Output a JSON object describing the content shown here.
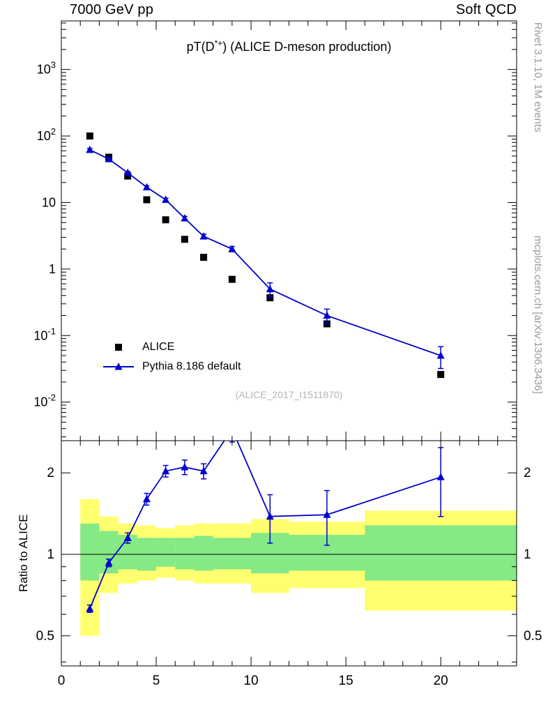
{
  "header": {
    "left": "7000 GeV pp",
    "right": "Soft QCD"
  },
  "side_labels": {
    "top_right": "Rivet 3.1.10,  1M events",
    "bottom_right": "mcplots.cern.ch [arXiv:1306.3436]"
  },
  "title": {
    "pre": "pT(D",
    "sup": "*+",
    "post": ") (ALICE D-meson production)"
  },
  "watermark": "(ALICE_2017_I1511870)",
  "ratio_ylabel": "Ratio to ALICE",
  "legend": [
    {
      "label": "ALICE",
      "marker": "square",
      "color": "#000000"
    },
    {
      "label": "Pythia 8.186 default",
      "marker": "triangle-line",
      "color": "#0000cc"
    }
  ],
  "colors": {
    "alice": "#000000",
    "pythia": "#0000cc",
    "band_outer": "#ffff70",
    "band_inner": "#85e985",
    "frame": "#000000",
    "gray_text": "#999999",
    "watermark": "#b5b5b5"
  },
  "chart_data": {
    "type": "line",
    "title": "pT(D*+) (ALICE D-meson production)",
    "xlabel": "",
    "x_range": [
      0,
      24
    ],
    "x_major_ticks": [
      0,
      5,
      10,
      15,
      20
    ],
    "main_panel": {
      "y_scale": "log",
      "y_log_range": [
        -2.58,
        3.73
      ],
      "y_labeled_decades": [
        3,
        2,
        1,
        0,
        -1,
        -2
      ],
      "x": [
        1.5,
        2.5,
        3.5,
        4.5,
        5.5,
        6.5,
        7.5,
        9,
        11,
        14,
        20
      ],
      "series": [
        {
          "name": "ALICE",
          "marker": "square",
          "color": "#000000",
          "line": false,
          "y": [
            100,
            48,
            25,
            11,
            5.5,
            2.8,
            1.5,
            0.7,
            0.37,
            0.15,
            0.026
          ]
        },
        {
          "name": "Pythia 8.186 default",
          "marker": "triangle",
          "color": "#0000cc",
          "line": true,
          "y": [
            62,
            45,
            28,
            17,
            11,
            5.8,
            3.1,
            2.0,
            0.5,
            0.2,
            0.05
          ],
          "yerr": [
            3,
            2,
            1.2,
            0.8,
            0.6,
            0.4,
            0.25,
            0.18,
            0.12,
            0.05,
            0.018
          ]
        }
      ]
    },
    "ratio_panel": {
      "y_scale": "log",
      "y_log_range": [
        -0.4123,
        0.42
      ],
      "y_ticks": [
        0.5,
        1,
        2
      ],
      "y_minor_ticks": [
        0.4,
        0.6,
        0.7,
        0.8,
        0.9
      ],
      "ref_line": 1,
      "bin_edges": [
        1,
        2,
        3,
        4,
        5,
        6,
        7,
        8,
        10,
        12,
        16,
        24
      ],
      "yellow_lo": [
        0.5,
        0.72,
        0.78,
        0.8,
        0.82,
        0.8,
        0.78,
        0.78,
        0.72,
        0.75,
        0.62
      ],
      "yellow_hi": [
        1.6,
        1.38,
        1.3,
        1.28,
        1.25,
        1.28,
        1.3,
        1.3,
        1.35,
        1.32,
        1.45
      ],
      "green_lo": [
        0.8,
        0.85,
        0.88,
        0.87,
        0.9,
        0.88,
        0.87,
        0.88,
        0.85,
        0.87,
        0.8
      ],
      "green_hi": [
        1.3,
        1.22,
        1.18,
        1.15,
        1.15,
        1.15,
        1.17,
        1.15,
        1.2,
        1.18,
        1.28
      ],
      "x": [
        1.5,
        2.5,
        3.5,
        4.5,
        5.5,
        6.5,
        7.5,
        9,
        11,
        14,
        20
      ],
      "ratio": [
        0.63,
        0.93,
        1.15,
        1.6,
        2.03,
        2.1,
        2.03,
        2.9,
        1.38,
        1.4,
        1.93
      ],
      "ratio_err": [
        0.02,
        0.03,
        0.05,
        0.08,
        0.1,
        0.13,
        0.13,
        0.3,
        0.28,
        0.32,
        0.55
      ]
    }
  }
}
